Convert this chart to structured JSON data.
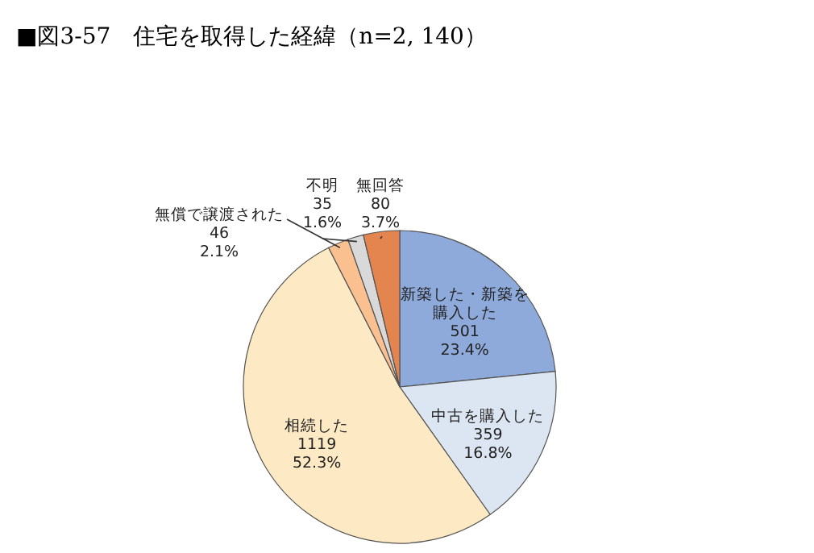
{
  "chart_data": {
    "type": "pie",
    "title": "■図3-57　住宅を取得した経緯（n=2, 140）",
    "categories": [
      "新築した・新築を購入した",
      "中古を購入した",
      "相続した",
      "無償で譲渡された",
      "不明",
      "無回答"
    ],
    "values": [
      501,
      359,
      1119,
      46,
      35,
      80
    ],
    "value_labels": [
      "501\n23.4%",
      "359\n16.8%",
      "1119\n52.3%",
      "46\n2.1%",
      "35\n1.6%",
      "80\n3.7%"
    ],
    "colors": [
      "#8eaadb",
      "#dce6f2",
      "#fde9c4",
      "#fac090",
      "#d9d9d9",
      "#e4854f"
    ],
    "legend": false
  }
}
